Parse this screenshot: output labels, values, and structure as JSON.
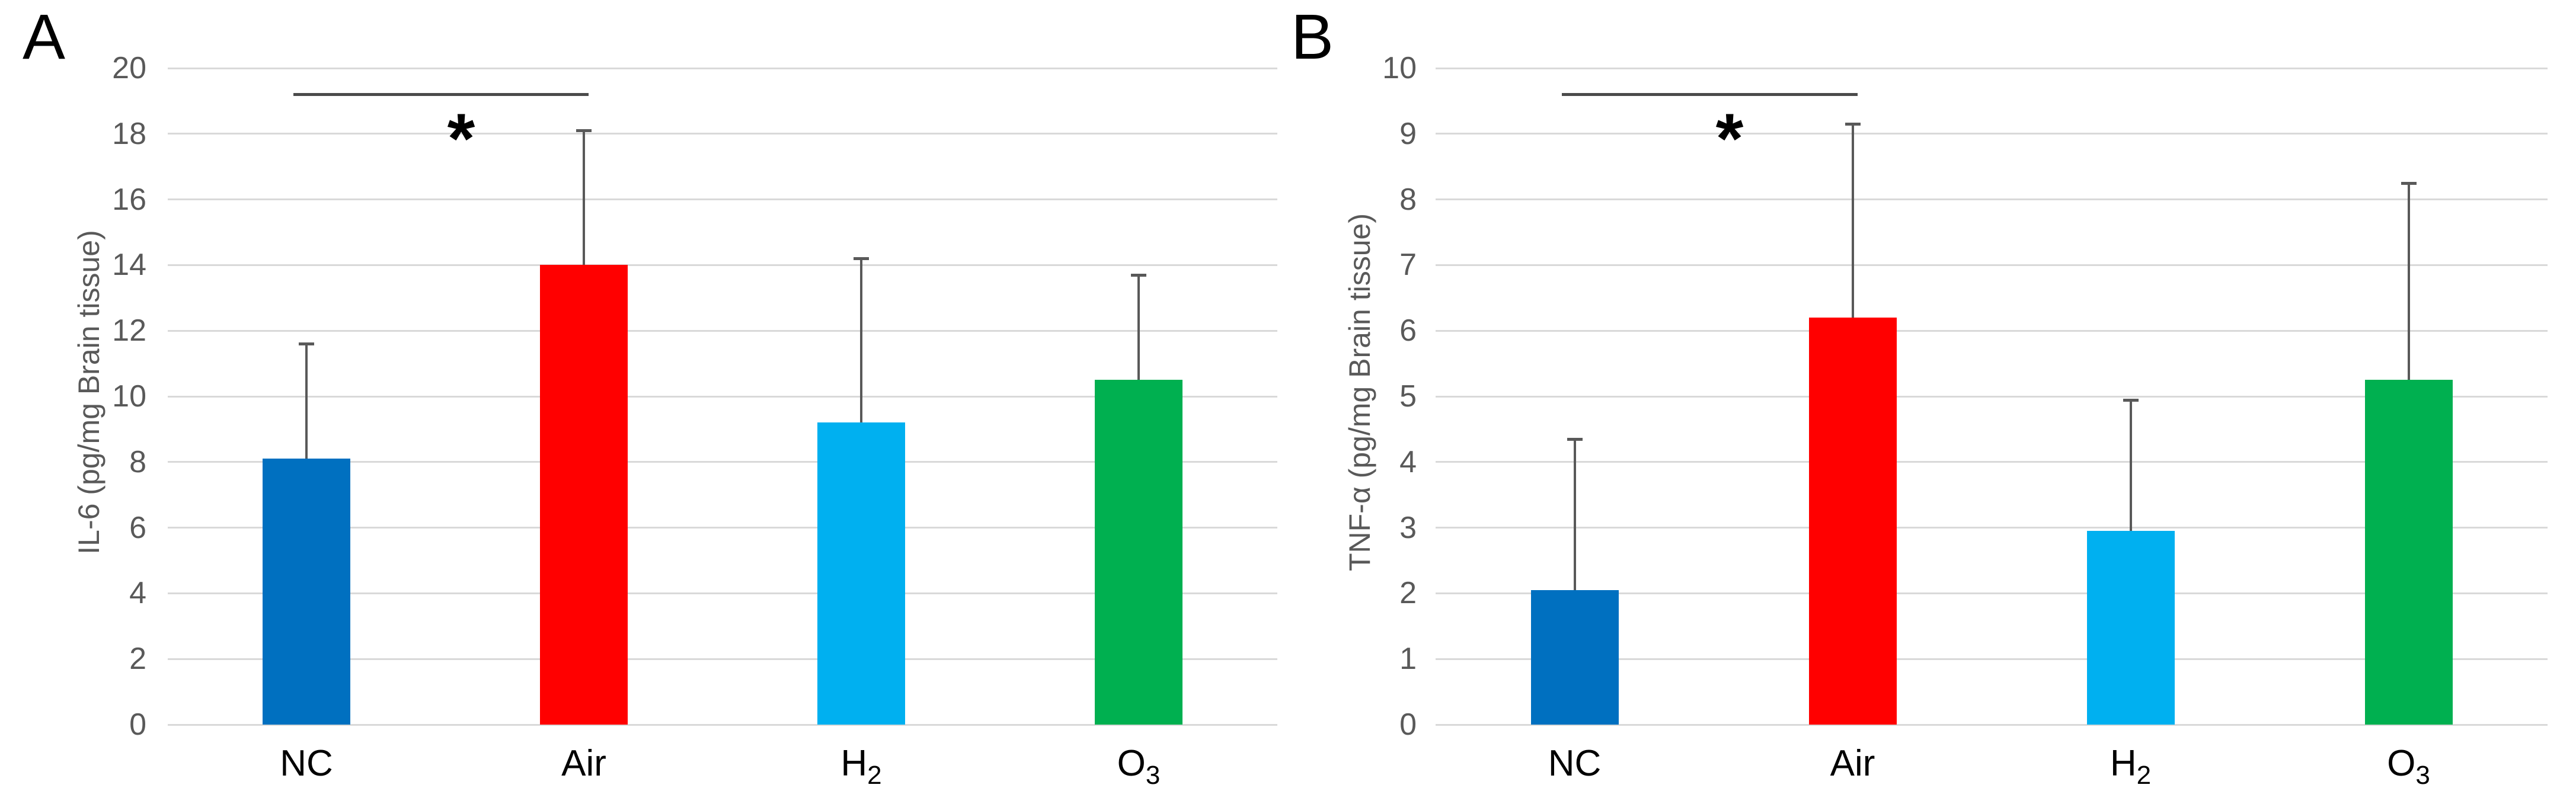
{
  "styles": {
    "background": "#FFFFFF",
    "grid_color": "#D9D9D9",
    "error_bar_color": "#595959",
    "significance_line_color": "#4A4A4A",
    "tick_label_color": "#595959",
    "axis_title_color": "#595959",
    "category_label_color": "#000000",
    "panel_letter_color": "#000000",
    "bar_colors": [
      "#0070C0",
      "#FF0000",
      "#00B0F0",
      "#00B050"
    ]
  },
  "chart_data": [
    {
      "type": "bar",
      "panel_label": "A",
      "title": "",
      "xlabel": "",
      "ylabel": "IL-6 (pg/mg Brain tissue)",
      "categories": [
        {
          "base": "NC",
          "sub": ""
        },
        {
          "base": "Air",
          "sub": ""
        },
        {
          "base": "H",
          "sub": "2"
        },
        {
          "base": "O",
          "sub": "3"
        }
      ],
      "values": [
        8.1,
        14.0,
        9.2,
        10.5
      ],
      "errors_up": [
        3.5,
        4.1,
        5.0,
        3.2
      ],
      "ylim": [
        0,
        20
      ],
      "yticks": [
        0,
        2,
        4,
        6,
        8,
        10,
        12,
        14,
        16,
        18,
        20
      ],
      "grid": true,
      "legend": "none",
      "significance": {
        "from_index": 0,
        "to_index": 1,
        "line_y": 19.2,
        "label": "*",
        "label_y": 18
      }
    },
    {
      "type": "bar",
      "panel_label": "B",
      "title": "",
      "xlabel": "",
      "ylabel": "TNF-α (pg/mg Brain tissue)",
      "categories": [
        {
          "base": "NC",
          "sub": ""
        },
        {
          "base": "Air",
          "sub": ""
        },
        {
          "base": "H",
          "sub": "2"
        },
        {
          "base": "O",
          "sub": "3"
        }
      ],
      "values": [
        2.05,
        6.2,
        2.95,
        5.25
      ],
      "errors_up": [
        2.3,
        2.95,
        2.0,
        3.0
      ],
      "ylim": [
        0,
        10
      ],
      "yticks": [
        0,
        1,
        2,
        3,
        4,
        5,
        6,
        7,
        8,
        9,
        10
      ],
      "grid": true,
      "legend": "none",
      "significance": {
        "from_index": 0,
        "to_index": 1,
        "line_y": 9.6,
        "label": "*",
        "label_y": 9
      }
    }
  ]
}
